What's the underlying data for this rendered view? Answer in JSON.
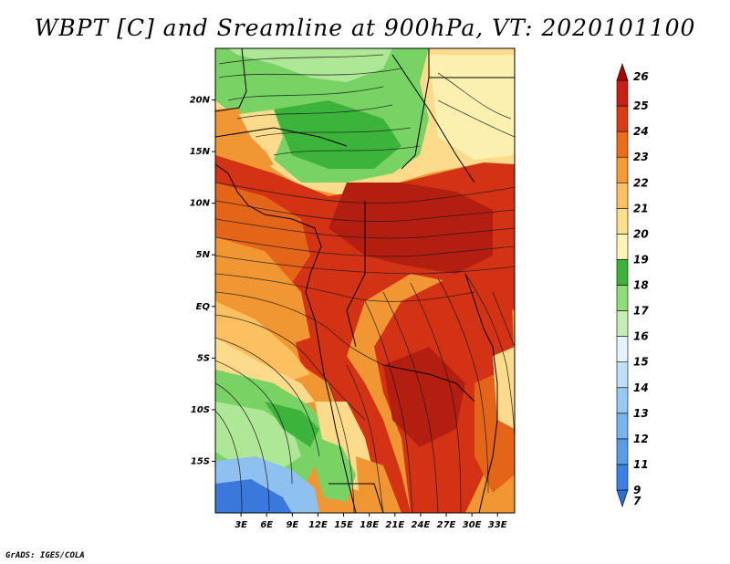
{
  "title": "WBPT [C] and Sreamline at 900hPa, VT: 2020101100",
  "footer": "GrADS: IGES/COLA",
  "map": {
    "x_ticks": [
      "3E",
      "6E",
      "9E",
      "12E",
      "15E",
      "18E",
      "21E",
      "24E",
      "27E",
      "30E",
      "33E"
    ],
    "y_ticks": [
      "20N",
      "15N",
      "10N",
      "5N",
      "EQ",
      "5S",
      "10S",
      "15S"
    ],
    "longitude_range": [
      0,
      35
    ],
    "latitude_range": [
      -20,
      25
    ]
  },
  "colorbar": {
    "levels": [
      "7",
      "9",
      "11",
      "12",
      "13",
      "14",
      "15",
      "16",
      "17",
      "18",
      "19",
      "20",
      "21",
      "22",
      "23",
      "24",
      "25",
      "26"
    ],
    "colors": [
      "#2a6ed6",
      "#3c82e2",
      "#5a9ce8",
      "#78b4ee",
      "#98c8f4",
      "#bedff8",
      "#e4f4fb",
      "#c4eeb4",
      "#8fdc78",
      "#3cb43c",
      "#fcf4b4",
      "#fce08c",
      "#fcc060",
      "#f49c32",
      "#ec6c18",
      "#dc3c14",
      "#c81e14",
      "#a80000"
    ]
  },
  "palette": {
    "blue_dark": "#3a78dc",
    "blue_light": "#8ec0f0",
    "green_dark": "#3cb43c",
    "green": "#78d264",
    "green_light": "#aee896",
    "yellow_light": "#fcf0b0",
    "yellow": "#fcdc8c",
    "orange_light": "#fcc060",
    "orange": "#f09632",
    "red_orange": "#e46418",
    "red": "#d43214",
    "red_dark": "#b41e10"
  }
}
